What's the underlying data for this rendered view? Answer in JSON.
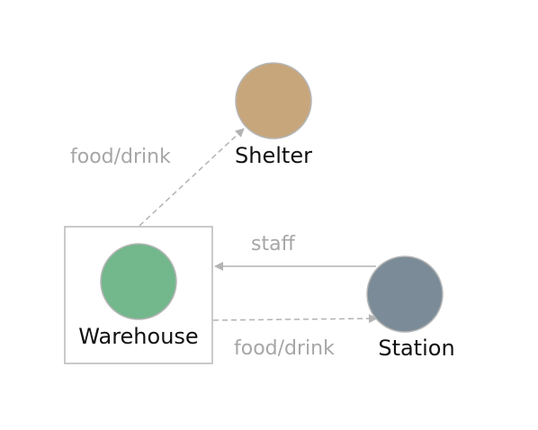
{
  "diagram": {
    "nodes": [
      {
        "id": "shelter",
        "label": "Shelter",
        "color": "#c7a67c"
      },
      {
        "id": "warehouse",
        "label": "Warehouse",
        "color": "#73b78c",
        "boxed": true
      },
      {
        "id": "station",
        "label": "Station",
        "color": "#7b8c98"
      }
    ],
    "edges": [
      {
        "from": "warehouse",
        "to": "shelter",
        "label": "food/drink",
        "style": "dashed"
      },
      {
        "from": "station",
        "to": "warehouse",
        "label": "staff",
        "style": "solid"
      },
      {
        "from": "warehouse",
        "to": "station",
        "label": "food/drink",
        "style": "dashed"
      }
    ],
    "colors": {
      "edge": "#b3b3b3",
      "edge_label": "#a6a6a6",
      "node_border": "#b5b5b5",
      "box_border": "#b8b8b8",
      "node_label": "#111111"
    }
  }
}
